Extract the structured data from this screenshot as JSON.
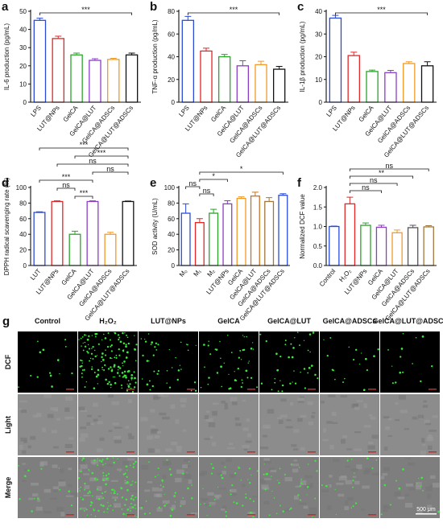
{
  "chart_data": [
    {
      "type": "bar",
      "panel_label": "a",
      "y_label": "IL-6 production (pg/mL)",
      "categories": [
        "LPS",
        "LUT@NPs",
        "GelCA",
        "GelCA@LUT",
        "GelCA@ADSCs",
        "GelCA@LUT@ADSCs"
      ],
      "values": [
        45,
        35,
        26,
        23,
        23.5,
        26
      ],
      "errors": [
        1.2,
        1.3,
        1.0,
        0.9,
        0.6,
        1.0
      ],
      "colors": [
        "#2a4bd7",
        "#e32626",
        "#2aa52a",
        "#8e3cc8",
        "#f09a2a",
        "#111111"
      ],
      "ylim": [
        0,
        50
      ],
      "yticks": [
        0,
        10,
        20,
        30,
        40,
        50
      ],
      "annotations": [
        {
          "text": "***",
          "from": 0,
          "to": 5
        }
      ]
    },
    {
      "type": "bar",
      "panel_label": "b",
      "y_label": "TNF-α production (pg/mL)",
      "categories": [
        "LPS",
        "LUT@NPs",
        "GelCA",
        "GelCA@LUT",
        "GelCA@ADSCs",
        "GelCA@LUT@ADSCs"
      ],
      "values": [
        72,
        45,
        40,
        32,
        33,
        29
      ],
      "errors": [
        3.5,
        2.5,
        2.0,
        4.5,
        3.0,
        2.5
      ],
      "colors": [
        "#2a4bd7",
        "#e32626",
        "#2aa52a",
        "#8e3cc8",
        "#f09a2a",
        "#111111"
      ],
      "ylim": [
        0,
        80
      ],
      "yticks": [
        0,
        20,
        40,
        60,
        80
      ],
      "annotations": [
        {
          "text": "***",
          "from": 0,
          "to": 5
        }
      ]
    },
    {
      "type": "bar",
      "panel_label": "c",
      "y_label": "IL-1β production (pg/mL)",
      "categories": [
        "LPS",
        "LUT@NPs",
        "GelCA",
        "GelCA@LUT",
        "GelCA@ADSCs",
        "GelCA@LUT@ADSCs"
      ],
      "values": [
        37,
        20.5,
        13.5,
        13,
        17,
        16
      ],
      "errors": [
        1.2,
        1.5,
        0.6,
        1.0,
        0.8,
        1.8
      ],
      "colors": [
        "#2a4bd7",
        "#e32626",
        "#2aa52a",
        "#8e3cc8",
        "#f09a2a",
        "#111111"
      ],
      "ylim": [
        0,
        40
      ],
      "yticks": [
        0,
        10,
        20,
        30,
        40
      ],
      "annotations": [
        {
          "text": "***",
          "from": 0,
          "to": 5
        }
      ]
    },
    {
      "type": "bar",
      "panel_label": "d",
      "y_label": "DPPH radical scavenging rate (%)",
      "categories": [
        "LUT",
        "LUT@NPs",
        "GelCA",
        "GelCA@LUT",
        "GelCA@ADSCs",
        "GelCA@LUT@ADSCs"
      ],
      "values": [
        68,
        82,
        40,
        82,
        40,
        82
      ],
      "errors": [
        0.8,
        0.8,
        4,
        0.8,
        2.5,
        0.6
      ],
      "colors": [
        "#2a4bd7",
        "#e32626",
        "#2aa52a",
        "#8e3cc8",
        "#f09a2a",
        "#111111"
      ],
      "ylim": [
        0,
        100
      ],
      "yticks": [
        0,
        20,
        40,
        60,
        80,
        100
      ],
      "annotations": [
        {
          "text": "***",
          "from": 0,
          "to": 5
        },
        {
          "text": "***",
          "from": 2,
          "to": 5
        },
        {
          "text": "ns",
          "from": 1,
          "to": 5
        },
        {
          "text": "ns",
          "from": 3,
          "to": 5
        },
        {
          "text": "***",
          "from": 0,
          "to": 3
        },
        {
          "text": "ns",
          "from": 1,
          "to": 2
        },
        {
          "text": "***",
          "from": 2,
          "to": 3
        }
      ]
    },
    {
      "type": "bar",
      "panel_label": "e",
      "y_label": "SOD activity (U/mL)",
      "categories": [
        "M₀",
        "M₁",
        "M₂",
        "LUT@NPs",
        "GelCA",
        "GelCA@LUT",
        "GelCA@ADSCs",
        "GelCA@LUT@ADSCs"
      ],
      "values": [
        67,
        55,
        67,
        79,
        86,
        89,
        82,
        90
      ],
      "errors": [
        12,
        5,
        5,
        4,
        2,
        5,
        5,
        2
      ],
      "colors": [
        "#2a4bd7",
        "#e32626",
        "#2aa52a",
        "#8e3cc8",
        "#f09a2a",
        "#c8741e",
        "#a0783c",
        "#2a4bd7"
      ],
      "ylim": [
        0,
        100
      ],
      "yticks": [
        0,
        20,
        40,
        60,
        80,
        100
      ],
      "annotations": [
        {
          "text": "*",
          "from": 1,
          "to": 7
        },
        {
          "text": "*",
          "from": 1,
          "to": 3
        },
        {
          "text": "ns",
          "from": 0,
          "to": 1
        },
        {
          "text": "ns",
          "from": 1,
          "to": 2
        }
      ]
    },
    {
      "type": "bar",
      "panel_label": "f",
      "y_label": "Normalized DCF value",
      "categories": [
        "Control",
        "H₂O₂",
        "LUT@NPs",
        "GelCA",
        "GelCA@LUT",
        "GelCA@ADSCs",
        "GelCA@LUT@ADSCs"
      ],
      "values": [
        1.0,
        1.58,
        1.03,
        0.98,
        0.84,
        0.97,
        0.99
      ],
      "errors": [
        0.01,
        0.17,
        0.06,
        0.05,
        0.07,
        0.06,
        0.03
      ],
      "colors": [
        "#2a4bd7",
        "#e32626",
        "#2aa52a",
        "#8e3cc8",
        "#f09a2a",
        "#555555",
        "#a0783c"
      ],
      "ylim": [
        0,
        2
      ],
      "yticks": [
        {
          "value": 0,
          "label": "0.0"
        },
        0.5,
        {
          "value": 1,
          "label": "1.0"
        },
        1.5,
        {
          "value": 2,
          "label": "2.0"
        }
      ],
      "annotations": [
        {
          "text": "ns",
          "from": 1,
          "to": 6
        },
        {
          "text": "**",
          "from": 1,
          "to": 5
        },
        {
          "text": "ns",
          "from": 1,
          "to": 4
        },
        {
          "text": "ns",
          "from": 1,
          "to": 3
        }
      ]
    }
  ],
  "panel_g": {
    "panel_label": "g",
    "columns": [
      "Control",
      "H₂O₂",
      "LUT@NPs",
      "GelCA",
      "GelCA@LUT",
      "GelCA@ADSCs",
      "GelCA@LUT@ADSCs"
    ],
    "rows": [
      "DCF",
      "Light",
      "Merge"
    ],
    "scale_bar": "500 μm"
  }
}
